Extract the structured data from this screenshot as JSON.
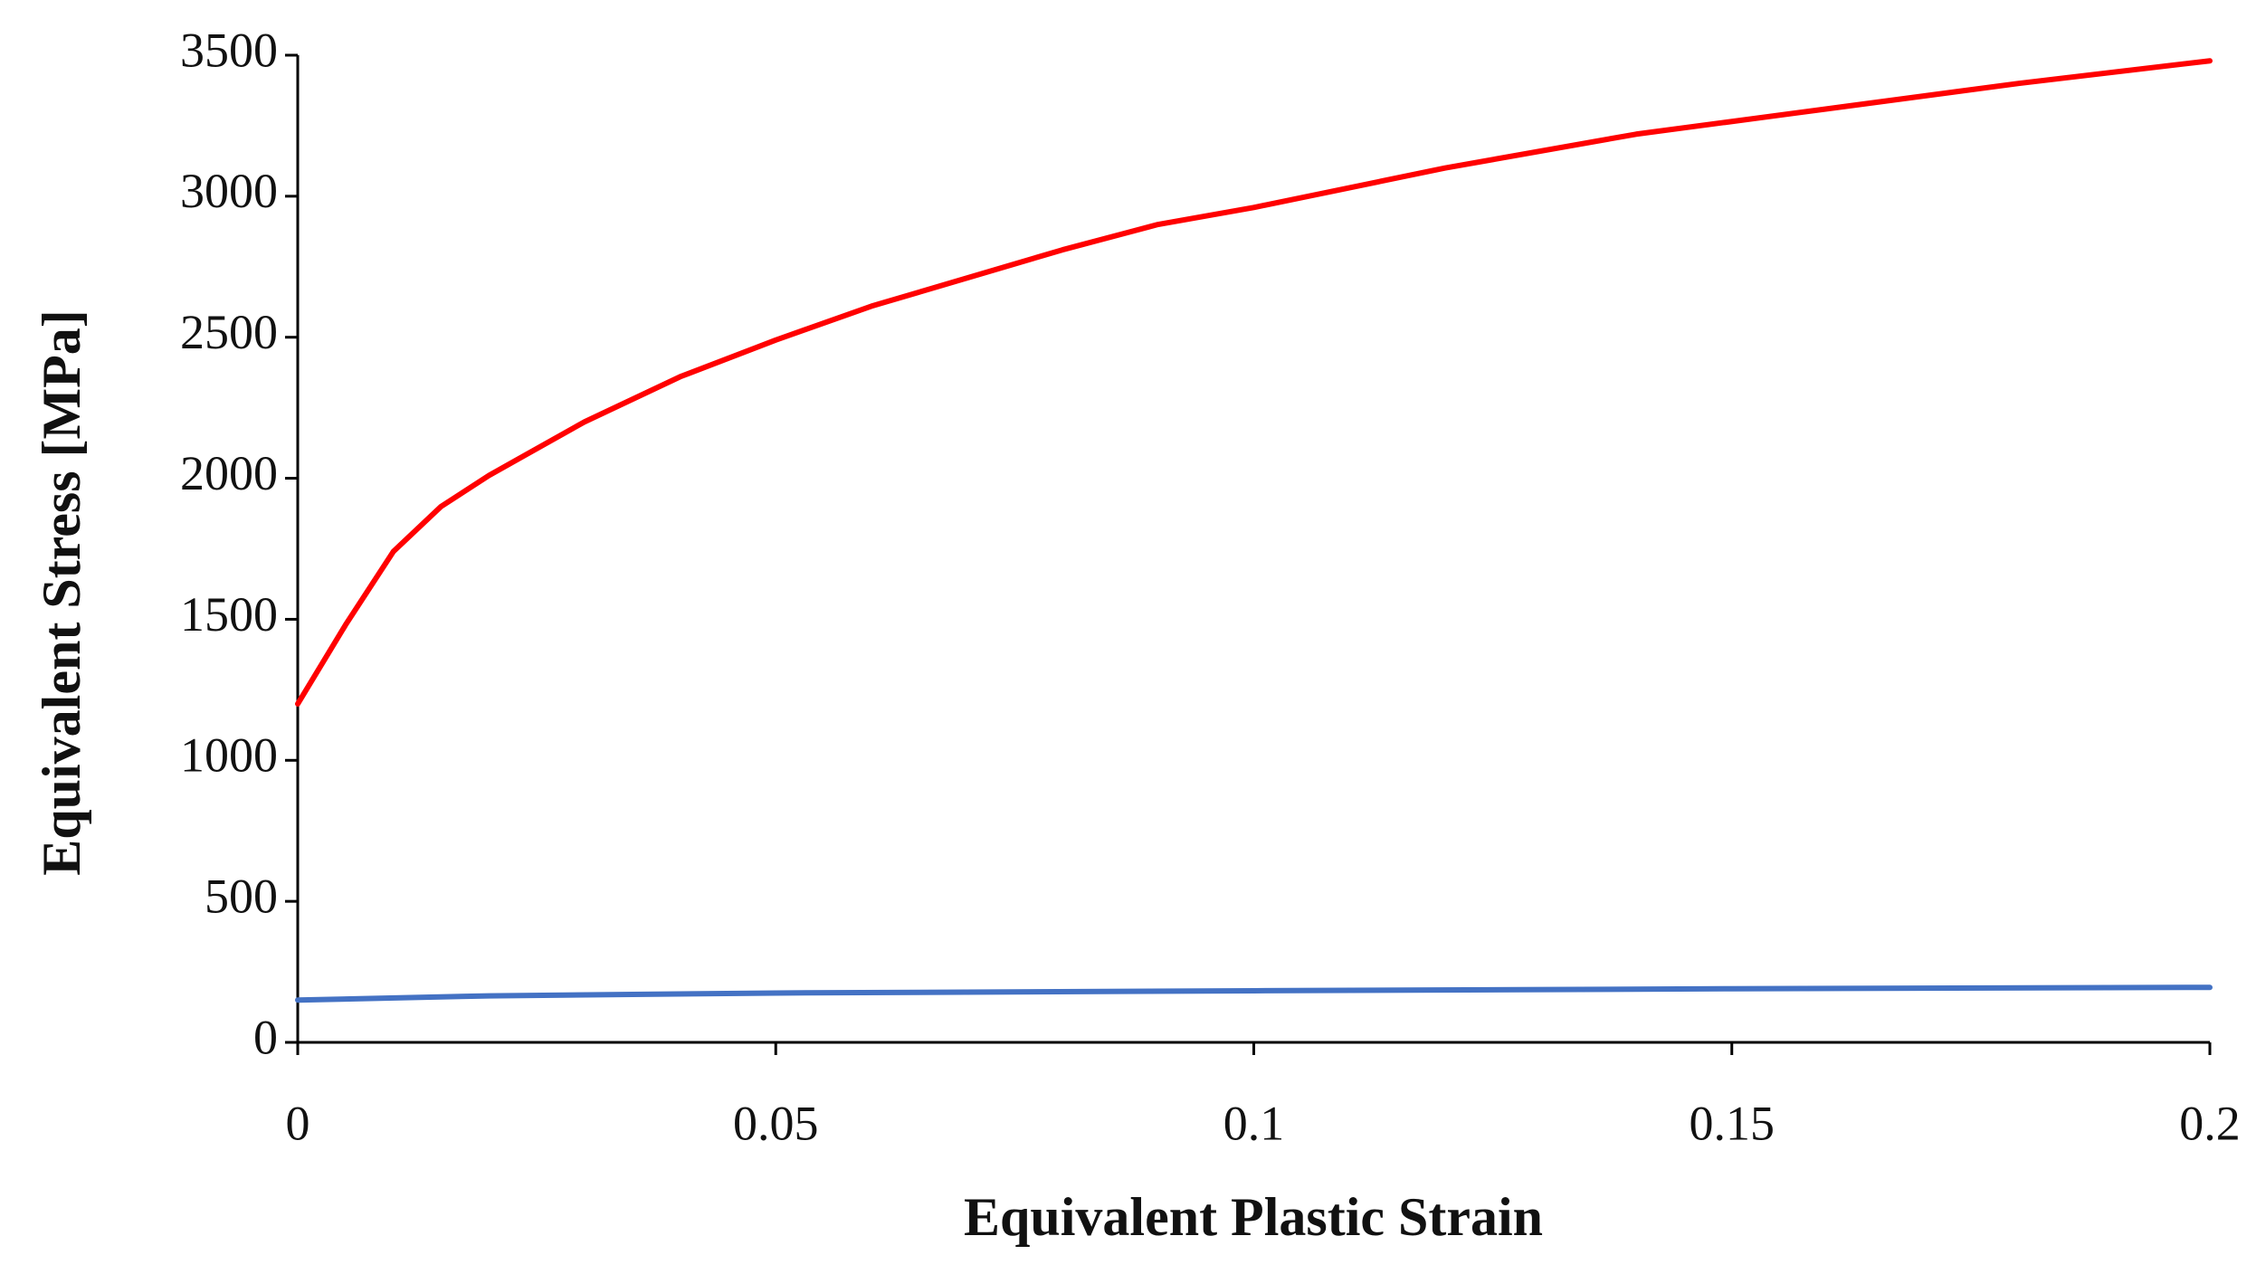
{
  "chart_data": {
    "type": "line",
    "x_label": "Equivalent Plastic Strain",
    "y_label": "Equivalent Stress [MPa]",
    "xlim": [
      0,
      0.2
    ],
    "xticks": [
      0,
      0.05,
      0.1,
      0.15,
      0.2
    ],
    "ylim": [
      0,
      3500
    ],
    "yticks": [
      0,
      500,
      1000,
      1500,
      2000,
      2500,
      3000,
      3500
    ],
    "grid": false,
    "series": [
      {
        "color": "#ff0000",
        "x": [
          0,
          0.005,
          0.01,
          0.015,
          0.02,
          0.03,
          0.04,
          0.05,
          0.06,
          0.07,
          0.08,
          0.09,
          0.1,
          0.12,
          0.14,
          0.16,
          0.18,
          0.2
        ],
        "values": [
          1200,
          1480,
          1740,
          1900,
          2010,
          2200,
          2360,
          2490,
          2610,
          2710,
          2810,
          2900,
          2960,
          3100,
          3220,
          3310,
          3400,
          3480
        ]
      },
      {
        "color": "#4472c4",
        "x": [
          0,
          0.02,
          0.05,
          0.1,
          0.15,
          0.2
        ],
        "values": [
          150,
          165,
          175,
          183,
          190,
          195
        ]
      }
    ]
  }
}
